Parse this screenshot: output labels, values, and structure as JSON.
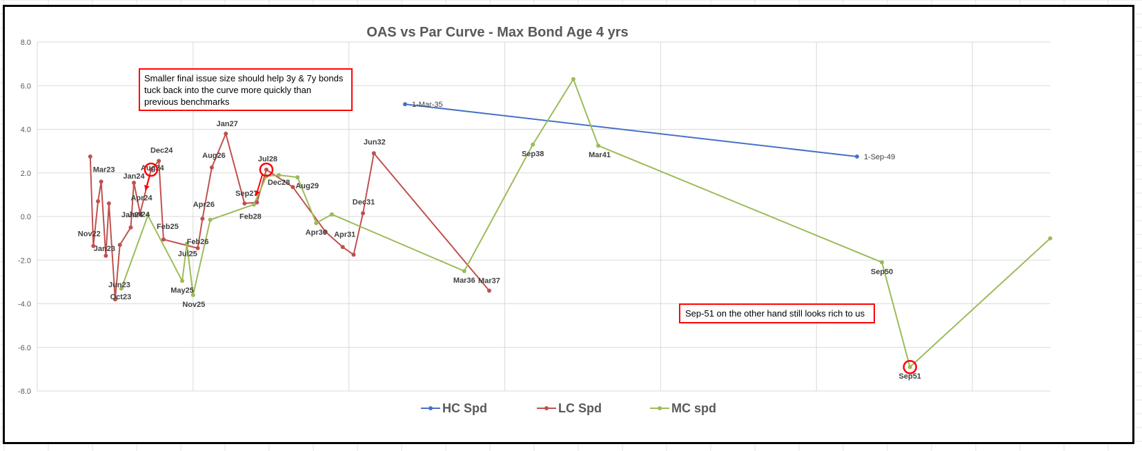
{
  "chart_data": {
    "type": "line",
    "title": "OAS vs Par Curve - Max Bond Age 4 yrs",
    "ylim": [
      -8,
      8
    ],
    "yticks": [
      "8.0",
      "6.0",
      "4.0",
      "2.0",
      "0.0",
      "-2.0",
      "-4.0",
      "-6.0",
      "-8.0"
    ],
    "grid": true,
    "legend_position": "bottom",
    "series": [
      {
        "name": "HC Spd",
        "color": "#4472C4",
        "points": [
          {
            "x": 11.8,
            "y": 5.15,
            "label": "1-Mar-35"
          },
          {
            "x": 26.3,
            "y": 2.75,
            "label": "1-Sep-49"
          }
        ]
      },
      {
        "name": "LC Spd",
        "color": "#C0504D",
        "points": [
          {
            "x": 1.7,
            "y": 2.75,
            "label": ""
          },
          {
            "x": 1.8,
            "y": -1.35,
            "label": "Nov22"
          },
          {
            "x": 1.95,
            "y": 0.7,
            "label": ""
          },
          {
            "x": 2.05,
            "y": 1.6,
            "label": "Mar23"
          },
          {
            "x": 2.2,
            "y": -1.8,
            "label": "Jan23"
          },
          {
            "x": 2.3,
            "y": 0.6,
            "label": ""
          },
          {
            "x": 2.5,
            "y": -3.8,
            "label": "Oct23"
          },
          {
            "x": 2.65,
            "y": -1.3,
            "label": ""
          },
          {
            "x": 3.0,
            "y": -0.5,
            "label": "Jan24"
          },
          {
            "x": 3.1,
            "y": 1.55,
            "label": "Jan24"
          },
          {
            "x": 3.3,
            "y": 0.15,
            "label": "Apr24"
          },
          {
            "x": 3.65,
            "y": 2.15,
            "label": "Aug24"
          },
          {
            "x": 3.9,
            "y": 2.55,
            "label": "Dec24"
          },
          {
            "x": 4.05,
            "y": -1.05,
            "label": "Feb25"
          },
          {
            "x": 5.15,
            "y": -1.45,
            "label": "Feb26"
          },
          {
            "x": 5.3,
            "y": -0.1,
            "label": "Apr26"
          },
          {
            "x": 5.6,
            "y": 2.25,
            "label": "Aug26"
          },
          {
            "x": 6.05,
            "y": 3.8,
            "label": "Jan27"
          },
          {
            "x": 6.65,
            "y": 0.6,
            "label": "Sep27"
          },
          {
            "x": 7.05,
            "y": 0.65,
            "label": ""
          },
          {
            "x": 7.35,
            "y": 2.15,
            "label": "Jul28"
          },
          {
            "x": 8.2,
            "y": 1.35,
            "label": ""
          },
          {
            "x": 9.25,
            "y": -0.7,
            "label": ""
          },
          {
            "x": 9.8,
            "y": -1.4,
            "label": "Apr31"
          },
          {
            "x": 10.15,
            "y": -1.75,
            "label": ""
          },
          {
            "x": 10.45,
            "y": 0.15,
            "label": "Dec31"
          },
          {
            "x": 10.8,
            "y": 2.9,
            "label": "Jun32"
          },
          {
            "x": 14.5,
            "y": -3.4,
            "label": "Mar37"
          }
        ]
      },
      {
        "name": "MC spd",
        "color": "#9BBB59",
        "points": [
          {
            "x": 2.7,
            "y": -3.3,
            "label": "Jun23"
          },
          {
            "x": 3.55,
            "y": 0.05,
            "label": "Jan24"
          },
          {
            "x": 4.65,
            "y": -2.95,
            "label": "May25"
          },
          {
            "x": 4.8,
            "y": -1.25,
            "label": "Jul25"
          },
          {
            "x": 5.0,
            "y": -3.6,
            "label": "Nov25"
          },
          {
            "x": 5.55,
            "y": -0.15,
            "label": ""
          },
          {
            "x": 6.95,
            "y": 0.55,
            "label": "Feb28"
          },
          {
            "x": 7.35,
            "y": 1.85,
            "label": ""
          },
          {
            "x": 7.75,
            "y": 1.9,
            "label": "Dec28"
          },
          {
            "x": 8.35,
            "y": 1.8,
            "label": "Aug29"
          },
          {
            "x": 8.95,
            "y": -0.3,
            "label": "Apr30"
          },
          {
            "x": 9.45,
            "y": 0.1,
            "label": ""
          },
          {
            "x": 13.7,
            "y": -2.5,
            "label": "Mar36"
          },
          {
            "x": 15.9,
            "y": 3.3,
            "label": "Sep38"
          },
          {
            "x": 17.2,
            "y": 6.3,
            "label": ""
          },
          {
            "x": 18.0,
            "y": 3.25,
            "label": "Mar41"
          },
          {
            "x": 27.1,
            "y": -2.1,
            "label": "Sep50"
          },
          {
            "x": 28.0,
            "y": -6.9,
            "label": "Sep51"
          },
          {
            "x": 32.5,
            "y": -1.0,
            "label": ""
          }
        ]
      }
    ],
    "annotations": [
      {
        "lines": [
          "Smaller final issue size should help 3y & 7y bonds",
          "tuck back into the curve more quickly than",
          "previous benchmarks"
        ]
      },
      {
        "lines": [
          "Sep-51 on the other hand still looks rich to us"
        ]
      }
    ]
  }
}
